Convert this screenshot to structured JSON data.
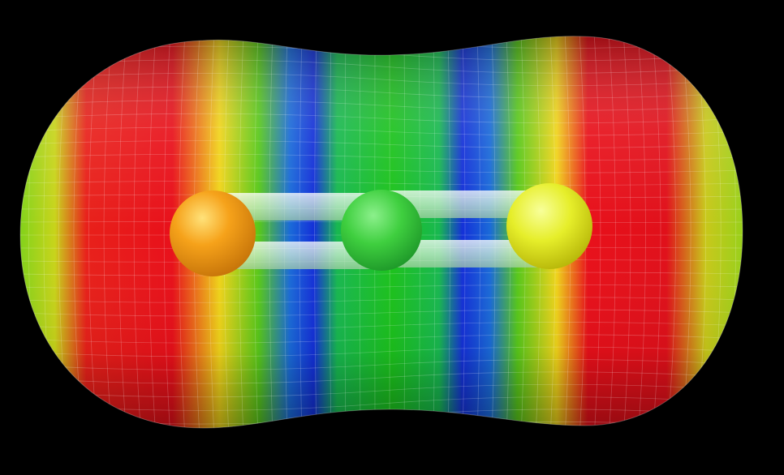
{
  "scene": {
    "background": "#000000",
    "surface_kind": "electrostatic-potential-surface",
    "color_scale": {
      "stops": [
        {
          "color": "#e0101a",
          "meaning": "most-negative"
        },
        {
          "color": "#f2e21a",
          "meaning": "negative"
        },
        {
          "color": "#1fbf1f",
          "meaning": "neutral"
        },
        {
          "color": "#1430d8",
          "meaning": "positive"
        }
      ]
    },
    "atoms": [
      {
        "role": "terminal-atom-left",
        "color": "#f6a21a"
      },
      {
        "role": "central-atom",
        "color": "#3fcf3f"
      },
      {
        "role": "terminal-atom-right",
        "color": "#e6ee2a"
      }
    ],
    "bonds": [
      {
        "role": "double-bond-left",
        "order": 2
      },
      {
        "role": "double-bond-right",
        "order": 2
      }
    ]
  }
}
